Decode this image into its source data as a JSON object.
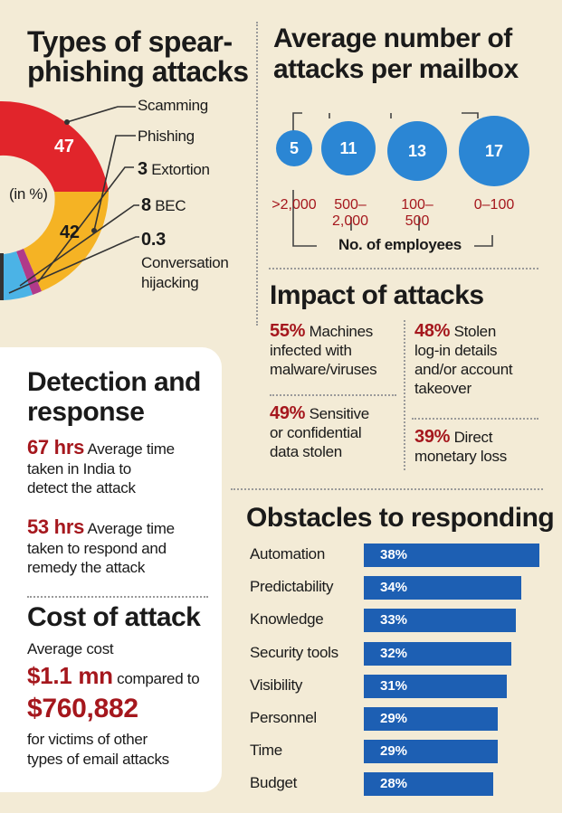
{
  "types": {
    "title_line1": "Types of spear-",
    "title_line2": "phishing attacks",
    "unit": "(in %)",
    "scamming_label": "Scamming",
    "scamming_value": "47",
    "phishing_label": "Phishing",
    "phishing_value": "42",
    "extortion_value": "3",
    "extortion_label": "Extortion",
    "bec_value": "8",
    "bec_label": "BEC",
    "conv_value": "0.3",
    "conv_label_line1": "Conversation",
    "conv_label_line2": "hijacking",
    "colors": {
      "scamming": "#e1252b",
      "phishing": "#f5b324",
      "extortion": "#b03a8a",
      "bec": "#4bb3e6",
      "conv": "#333333"
    }
  },
  "mailbox": {
    "title_line1": "Average number of",
    "title_line2": "attacks per mailbox",
    "values": [
      "5",
      "11",
      "13",
      "17"
    ],
    "ranges": [
      [
        ">2,000"
      ],
      [
        "500–",
        "2,000"
      ],
      [
        "100–",
        "500"
      ],
      [
        "0–100"
      ]
    ],
    "axis_label": "No. of employees",
    "color": "#2b86d4"
  },
  "impact": {
    "title": "Impact of attacks",
    "i1_pct": "55%",
    "i1_l1": "Machines",
    "i1_l2": "infected with",
    "i1_l3": "malware/viruses",
    "i2_pct": "48%",
    "i2_l1": "Stolen",
    "i2_l2": "log-in details",
    "i2_l3": "and/or account",
    "i2_l4": "takeover",
    "i3_pct": "49%",
    "i3_l1": "Sensitive",
    "i3_l2": "or confidential",
    "i3_l3": "data stolen",
    "i4_pct": "39%",
    "i4_l1": "Direct",
    "i4_l2": "monetary loss"
  },
  "detection": {
    "title_line1": "Detection and",
    "title_line2": "response",
    "d1_value": "67 hrs",
    "d1_l1": "Average time",
    "d1_l2": "taken in India to",
    "d1_l3": "detect the attack",
    "d2_value": "53 hrs",
    "d2_l1": "Average time",
    "d2_l2": "taken to respond and",
    "d2_l3": "remedy the attack"
  },
  "cost": {
    "title": "Cost of attack",
    "avg_label": "Average cost",
    "value1": "$1.1 mn",
    "compared": "compared to",
    "value2": "$760,882",
    "l1": "for victims of other",
    "l2": "types of email attacks"
  },
  "obstacles": {
    "title": "Obstacles to responding",
    "color": "#1d5fb3",
    "chart_data": {
      "type": "bar",
      "categories": [
        "Automation",
        "Predictability",
        "Knowledge",
        "Security tools",
        "Visibility",
        "Personnel",
        "Time",
        "Budget"
      ],
      "values": [
        38,
        34,
        33,
        32,
        31,
        29,
        29,
        28
      ],
      "labels": [
        "38%",
        "34%",
        "33%",
        "32%",
        "31%",
        "29%",
        "29%",
        "28%"
      ],
      "title": "Obstacles to responding"
    }
  }
}
